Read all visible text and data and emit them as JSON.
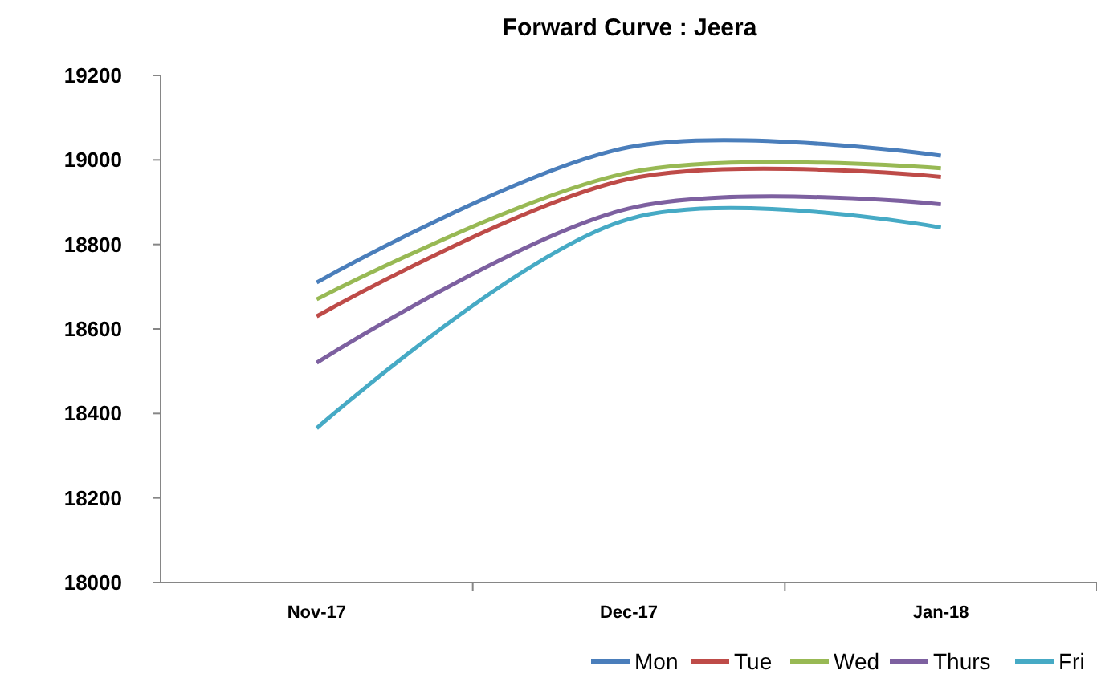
{
  "chart_data": {
    "type": "line",
    "title": "Forward Curve : Jeera",
    "categories": [
      "Nov-17",
      "Dec-17",
      "Jan-18"
    ],
    "series": [
      {
        "name": "Mon",
        "color": "#4a7ebb",
        "values": [
          18710,
          19030,
          19010
        ]
      },
      {
        "name": "Tue",
        "color": "#be4b48",
        "values": [
          18630,
          18955,
          18960
        ]
      },
      {
        "name": "Wed",
        "color": "#98b954",
        "values": [
          18670,
          18970,
          18980
        ]
      },
      {
        "name": "Thurs",
        "color": "#7d60a0",
        "values": [
          18520,
          18885,
          18895
        ]
      },
      {
        "name": "Fri",
        "color": "#46aac5",
        "values": [
          18365,
          18860,
          18840
        ]
      }
    ],
    "ylim": [
      18000,
      19200
    ],
    "yticks": [
      18000,
      18200,
      18400,
      18600,
      18800,
      19000,
      19200
    ],
    "grid": false,
    "legend": "bottom right",
    "marker": "none",
    "line_style": "solid"
  }
}
